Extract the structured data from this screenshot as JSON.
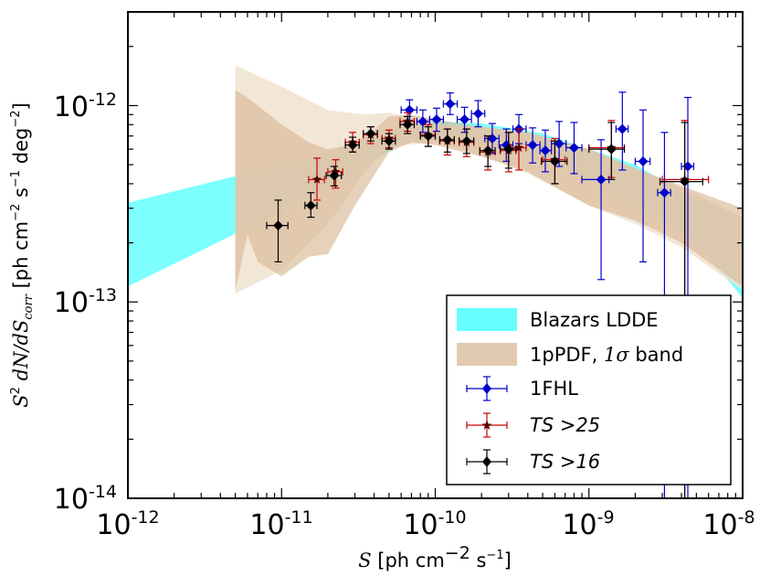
{
  "chart_data": {
    "type": "scatter",
    "xscale": "log",
    "yscale": "log",
    "xlim": [
      1e-12,
      1e-08
    ],
    "ylim": [
      1e-14,
      3e-12
    ],
    "x_ticks": [
      {
        "base": "10",
        "exp": "-12",
        "value": 1e-12
      },
      {
        "base": "10",
        "exp": "-11",
        "value": 1e-11
      },
      {
        "base": "10",
        "exp": "-10",
        "value": 1e-10
      },
      {
        "base": "10",
        "exp": "-9",
        "value": 1e-09
      },
      {
        "base": "10",
        "exp": "-8",
        "value": 1e-08
      }
    ],
    "y_ticks": [
      {
        "base": "10",
        "exp": "-14",
        "value": 1e-14
      },
      {
        "base": "10",
        "exp": "-13",
        "value": 1e-13
      },
      {
        "base": "10",
        "exp": "-12",
        "value": 1e-12
      }
    ],
    "xlabel": {
      "sym": "S",
      "rest": " [ph cm",
      "exp1": "−2",
      "mid": " s",
      "exp2": "−1",
      "end": "]"
    },
    "ylabel": {
      "s": "S",
      "s_exp": "2",
      "body": " dN/dS",
      "sub": "corr",
      "unit_open": " [ph cm",
      "e1": "−2",
      "u2": " s",
      "e2": "−1",
      "u3": " deg",
      "e3": "−2",
      "close": "]"
    },
    "colors": {
      "lddeBand": "#66ffff",
      "pdfBand": "#d8b896",
      "fhl": "#0000cc",
      "ts25": "#cc0000",
      "ts16": "#000000"
    },
    "bands": [
      {
        "name": "Blazars LDDE",
        "label": "Blazars LDDE",
        "color": "#66ffff",
        "opacity": 0.85,
        "x": [
          1e-12,
          1e-11,
          3e-11,
          6e-11,
          1e-10,
          2e-10,
          3e-10,
          5e-10,
          1e-09,
          2e-09,
          5e-09,
          1e-08
        ],
        "upper": [
          3.2e-13,
          5e-13,
          6.3e-13,
          7.6e-13,
          8.3e-13,
          8.1e-13,
          7.7e-13,
          7.2e-13,
          6e-13,
          5e-13,
          3.3e-13,
          2.7e-13
        ],
        "lower": [
          1.2e-13,
          2.9e-13,
          4.6e-13,
          6.4e-13,
          6.8e-13,
          6.5e-13,
          6e-13,
          5.5e-13,
          4.1e-13,
          3.2e-13,
          2e-13,
          1.05e-13
        ]
      },
      {
        "name": "1pPDF outer",
        "color": "#f0e2d0",
        "opacity": 0.85,
        "x": [
          5e-12,
          1e-11,
          2e-11,
          3.5e-11,
          5e-11,
          1e-10,
          2e-10,
          4e-10,
          7e-10,
          1e-09,
          2e-09,
          4e-09,
          1e-08
        ],
        "upper": [
          1.6e-12,
          1.25e-12,
          9.5e-13,
          9e-13,
          9.2e-13,
          8e-13,
          7.8e-13,
          7.3e-13,
          6.5e-13,
          6e-13,
          4.8e-13,
          3.8e-13,
          2.7e-13
        ],
        "lower": [
          1.1e-13,
          1.45e-13,
          2.5e-13,
          4.6e-13,
          6.2e-13,
          6.5e-13,
          5.6e-13,
          4.5e-13,
          3.6e-13,
          3.1e-13,
          2.5e-13,
          1.9e-13,
          1.15e-13
        ]
      },
      {
        "name": "1pPDF, 1σ band",
        "label_text": "1pPDF, ",
        "label_sym": "1σ",
        "label_end": " band",
        "color": "#d8b896",
        "opacity": 0.65,
        "x": [
          5e-12,
          6e-12,
          7e-12,
          1e-11,
          1.5e-11,
          2e-11,
          2.5e-11,
          3e-11,
          4e-11,
          5e-11,
          7e-11,
          1e-10,
          2e-10,
          4e-10,
          7e-10,
          1e-09,
          2e-09,
          4e-09,
          1e-08
        ],
        "upper": [
          1.2e-12,
          1.1e-12,
          1e-12,
          8e-13,
          6.5e-13,
          6e-13,
          6.2e-13,
          6.5e-13,
          7.5e-13,
          8.8e-13,
          9e-13,
          8.5e-13,
          7.8e-13,
          7.3e-13,
          6.5e-13,
          6e-13,
          4.8e-13,
          3.9e-13,
          3e-13
        ],
        "lower": [
          1.15e-13,
          2.2e-13,
          1.6e-13,
          1.35e-13,
          1.7e-13,
          1.75e-13,
          2.4e-13,
          3.1e-13,
          4.4e-13,
          5.8e-13,
          6.5e-13,
          6.3e-13,
          5.5e-13,
          4.6e-13,
          3.6e-13,
          3.1e-13,
          2.6e-13,
          2e-13,
          1.2e-13
        ]
      }
    ],
    "series": [
      {
        "name": "1FHL",
        "label": "1FHL",
        "marker": "diamond",
        "color": "#0000cc",
        "points": [
          {
            "x": 6.8e-11,
            "y": 9.5e-13,
            "xlo": 6e-11,
            "xhi": 7.6e-11,
            "ylo": 8.4e-13,
            "yhi": 1.07e-12
          },
          {
            "x": 8.3e-11,
            "y": 8.3e-13,
            "xlo": 7.6e-11,
            "xhi": 9.2e-11,
            "ylo": 7.3e-13,
            "yhi": 9.5e-13
          },
          {
            "x": 1.02e-10,
            "y": 8.5e-13,
            "xlo": 9.2e-11,
            "xhi": 1.13e-10,
            "ylo": 7.4e-13,
            "yhi": 9.7e-13
          },
          {
            "x": 1.25e-10,
            "y": 1.02e-12,
            "xlo": 1.13e-10,
            "xhi": 1.39e-10,
            "ylo": 9e-13,
            "yhi": 1.16e-12
          },
          {
            "x": 1.55e-10,
            "y": 8.5e-13,
            "xlo": 1.39e-10,
            "xhi": 1.72e-10,
            "ylo": 7.3e-13,
            "yhi": 9.8e-13
          },
          {
            "x": 1.9e-10,
            "y": 9.1e-13,
            "xlo": 1.72e-10,
            "xhi": 2.1e-10,
            "ylo": 7.8e-13,
            "yhi": 1.06e-12
          },
          {
            "x": 2.35e-10,
            "y": 6.8e-13,
            "xlo": 2.1e-10,
            "xhi": 2.6e-10,
            "ylo": 5.7e-13,
            "yhi": 8.1e-13
          },
          {
            "x": 2.9e-10,
            "y": 6.3e-13,
            "xlo": 2.6e-10,
            "xhi": 3.2e-10,
            "ylo": 5.2e-13,
            "yhi": 7.6e-13
          },
          {
            "x": 3.5e-10,
            "y": 7.6e-13,
            "xlo": 3.2e-10,
            "xhi": 3.9e-10,
            "ylo": 6.4e-13,
            "yhi": 9e-13
          },
          {
            "x": 4.3e-10,
            "y": 6.3e-13,
            "xlo": 3.9e-10,
            "xhi": 4.8e-10,
            "ylo": 5.1e-13,
            "yhi": 7.7e-13
          },
          {
            "x": 5.2e-10,
            "y": 5.9e-13,
            "xlo": 4.8e-10,
            "xhi": 5.7e-10,
            "ylo": 4.6e-13,
            "yhi": 7.5e-13
          },
          {
            "x": 6.4e-10,
            "y": 6.4e-13,
            "xlo": 5.7e-10,
            "xhi": 7.1e-10,
            "ylo": 4.9e-13,
            "yhi": 8.3e-13
          },
          {
            "x": 8e-10,
            "y": 6.1e-13,
            "xlo": 7.1e-10,
            "xhi": 9e-10,
            "ylo": 4.5e-13,
            "yhi": 8.2e-13
          },
          {
            "x": 1.2e-09,
            "y": 4.2e-13,
            "xlo": 9e-10,
            "xhi": 1.35e-09,
            "ylo": 1.3e-13,
            "yhi": 6.7e-13
          },
          {
            "x": 1.65e-09,
            "y": 7.6e-13,
            "xlo": 1.5e-09,
            "xhi": 1.8e-09,
            "ylo": 4.7e-13,
            "yhi": 1.17e-12
          },
          {
            "x": 2.25e-09,
            "y": 5.2e-13,
            "xlo": 2e-09,
            "xhi": 2.5e-09,
            "ylo": 1.6e-13,
            "yhi": 9.5e-13
          },
          {
            "x": 3.1e-09,
            "y": 3.6e-13,
            "xlo": 2.8e-09,
            "xhi": 3.4e-09,
            "ylo": 1e-14,
            "yhi": 7.3e-13
          },
          {
            "x": 4.4e-09,
            "y": 4.9e-13,
            "xlo": 4e-09,
            "xhi": 4.8e-09,
            "ylo": 1e-14,
            "yhi": 1.1e-12
          }
        ]
      },
      {
        "name": "TS>25",
        "label": "TS >25",
        "marker": "star",
        "color": "#cc0000",
        "points": [
          {
            "x": 1.7e-11,
            "y": 4.2e-13,
            "xlo": 1.5e-11,
            "xhi": 1.9e-11,
            "ylo": 3.3e-13,
            "yhi": 5.4e-13
          },
          {
            "x": 2.25e-11,
            "y": 4.6e-13,
            "xlo": 2e-11,
            "xhi": 2.5e-11,
            "ylo": 3.8e-13,
            "yhi": 5.3e-13
          },
          {
            "x": 2.9e-11,
            "y": 6.5e-13,
            "xlo": 2.6e-11,
            "xhi": 3.2e-11,
            "ylo": 5.8e-13,
            "yhi": 7.3e-13
          },
          {
            "x": 3.8e-11,
            "y": 7.1e-13,
            "xlo": 3.4e-11,
            "xhi": 4.2e-11,
            "ylo": 6.4e-13,
            "yhi": 7.8e-13
          },
          {
            "x": 5e-11,
            "y": 6.8e-13,
            "xlo": 4.5e-11,
            "xhi": 5.5e-11,
            "ylo": 6.1e-13,
            "yhi": 7.5e-13
          },
          {
            "x": 6.6e-11,
            "y": 8.3e-13,
            "xlo": 5.9e-11,
            "xhi": 7.3e-11,
            "ylo": 7.4e-13,
            "yhi": 9.2e-13
          },
          {
            "x": 9e-11,
            "y": 7.1e-13,
            "xlo": 8e-11,
            "xhi": 1e-10,
            "ylo": 6.2e-13,
            "yhi": 8e-13
          },
          {
            "x": 1.2e-10,
            "y": 6.6e-13,
            "xlo": 1.07e-10,
            "xhi": 1.33e-10,
            "ylo": 5.6e-13,
            "yhi": 7.6e-13
          },
          {
            "x": 1.6e-10,
            "y": 6.5e-13,
            "xlo": 1.43e-10,
            "xhi": 1.78e-10,
            "ylo": 5.5e-13,
            "yhi": 7.6e-13
          },
          {
            "x": 2.2e-10,
            "y": 5.8e-13,
            "xlo": 1.95e-10,
            "xhi": 2.45e-10,
            "ylo": 4.7e-13,
            "yhi": 7e-13
          },
          {
            "x": 3e-10,
            "y": 5.9e-13,
            "xlo": 2.65e-10,
            "xhi": 3.35e-10,
            "ylo": 4.6e-13,
            "yhi": 7.3e-13
          },
          {
            "x": 3.5e-10,
            "y": 6.1e-13,
            "xlo": 3.1e-10,
            "xhi": 3.9e-10,
            "ylo": 4.7e-13,
            "yhi": 7.6e-13
          },
          {
            "x": 6e-10,
            "y": 5.3e-13,
            "xlo": 5e-10,
            "xhi": 7e-10,
            "ylo": 4e-13,
            "yhi": 6.8e-13
          },
          {
            "x": 1.4e-09,
            "y": 6.1e-13,
            "xlo": 1e-09,
            "xhi": 1.7e-09,
            "ylo": 4.3e-13,
            "yhi": 8.4e-13
          },
          {
            "x": 4.2e-09,
            "y": 4.2e-13,
            "xlo": 3e-09,
            "xhi": 6e-09,
            "ylo": 1e-14,
            "yhi": 8.4e-13
          }
        ]
      },
      {
        "name": "TS>16",
        "label": "TS >16",
        "marker": "diamond",
        "color": "#000000",
        "points": [
          {
            "x": 9.5e-12,
            "y": 2.45e-13,
            "xlo": 8e-12,
            "xhi": 1.1e-11,
            "ylo": 1.6e-13,
            "yhi": 3.3e-13
          },
          {
            "x": 1.55e-11,
            "y": 3.1e-13,
            "xlo": 1.42e-11,
            "xhi": 1.7e-11,
            "ylo": 2.7e-13,
            "yhi": 3.6e-13
          },
          {
            "x": 2.2e-11,
            "y": 4.4e-13,
            "xlo": 1.95e-11,
            "xhi": 2.45e-11,
            "ylo": 3.9e-13,
            "yhi": 4.9e-13
          },
          {
            "x": 2.9e-11,
            "y": 6.3e-13,
            "xlo": 2.6e-11,
            "xhi": 3.2e-11,
            "ylo": 5.8e-13,
            "yhi": 6.9e-13
          },
          {
            "x": 3.8e-11,
            "y": 7.2e-13,
            "xlo": 3.4e-11,
            "xhi": 4.2e-11,
            "ylo": 6.6e-13,
            "yhi": 7.8e-13
          },
          {
            "x": 5e-11,
            "y": 6.6e-13,
            "xlo": 4.5e-11,
            "xhi": 5.5e-11,
            "ylo": 6e-13,
            "yhi": 7.2e-13
          },
          {
            "x": 6.6e-11,
            "y": 8e-13,
            "xlo": 5.9e-11,
            "xhi": 7.3e-11,
            "ylo": 7.2e-13,
            "yhi": 8.8e-13
          },
          {
            "x": 9e-11,
            "y": 7e-13,
            "xlo": 8e-11,
            "xhi": 1e-10,
            "ylo": 6.2e-13,
            "yhi": 7.8e-13
          },
          {
            "x": 1.2e-10,
            "y": 6.7e-13,
            "xlo": 1.07e-10,
            "xhi": 1.33e-10,
            "ylo": 5.8e-13,
            "yhi": 7.6e-13
          },
          {
            "x": 1.6e-10,
            "y": 6.6e-13,
            "xlo": 1.43e-10,
            "xhi": 1.78e-10,
            "ylo": 5.7e-13,
            "yhi": 7.6e-13
          },
          {
            "x": 2.2e-10,
            "y": 5.9e-13,
            "xlo": 1.95e-10,
            "xhi": 2.45e-10,
            "ylo": 4.9e-13,
            "yhi": 7e-13
          },
          {
            "x": 3e-10,
            "y": 6e-13,
            "xlo": 2.65e-10,
            "xhi": 3.35e-10,
            "ylo": 4.8e-13,
            "yhi": 7.3e-13
          },
          {
            "x": 6e-10,
            "y": 5.2e-13,
            "xlo": 4.9e-10,
            "xhi": 7.2e-10,
            "ylo": 4e-13,
            "yhi": 6.6e-13
          },
          {
            "x": 1.4e-09,
            "y": 6e-13,
            "xlo": 1e-09,
            "xhi": 1.7e-09,
            "ylo": 4.2e-13,
            "yhi": 8.2e-13
          },
          {
            "x": 4.2e-09,
            "y": 4.1e-13,
            "xlo": 2.9e-09,
            "xhi": 5.5e-09,
            "ylo": 1e-14,
            "yhi": 8.2e-13
          }
        ]
      }
    ],
    "legend": {
      "position": "bottom-right"
    }
  }
}
